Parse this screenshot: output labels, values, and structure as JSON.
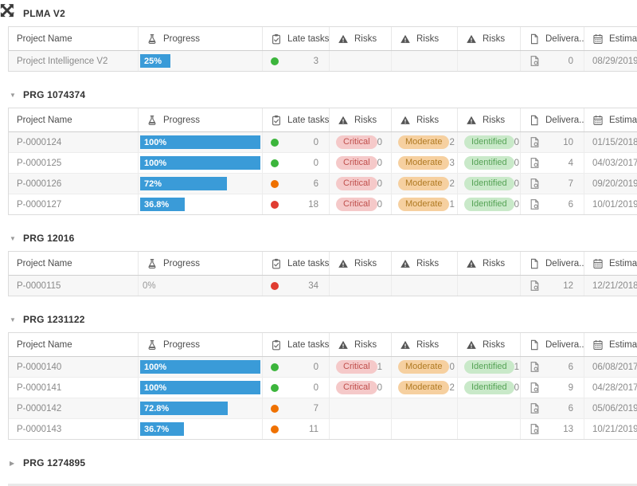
{
  "colors": {
    "progress_bar": "#3a9bd8",
    "status_green": "#3cb53c",
    "status_orange": "#ef7100",
    "status_red": "#e03c31",
    "pill_critical_bg": "#f5c9c9",
    "pill_critical_fg": "#c0504d",
    "pill_moderate_bg": "#f6d0a0",
    "pill_moderate_fg": "#b07a22",
    "pill_identified_bg": "#c9e9c9",
    "pill_identified_fg": "#56a356"
  },
  "icons": {
    "triangle_expanded": "▼",
    "triangle_collapsed": "▶"
  },
  "columns": [
    {
      "label": "Project Name",
      "icon": null
    },
    {
      "label": "Progress",
      "icon": "flask-icon"
    },
    {
      "label": "Late tasks",
      "icon": "clipboard-check-icon"
    },
    {
      "label": "Risks",
      "icon": "warning-icon"
    },
    {
      "label": "Risks",
      "icon": "warning-icon"
    },
    {
      "label": "Risks",
      "icon": "warning-icon"
    },
    {
      "label": "Delivera...",
      "icon": "document-icon"
    },
    {
      "label": "Estimated...",
      "icon": "calendar-icon"
    }
  ],
  "groups": [
    {
      "title": "PLMA V2",
      "expanded": true,
      "rows": [
        {
          "name": "Project Intelligence V2",
          "progress_label": "25%",
          "progress_value": 25,
          "late_status": "green",
          "late_count": 3,
          "risks": [
            null,
            null,
            null
          ],
          "deliverables": 0,
          "estimated": "08/29/2019"
        }
      ]
    },
    {
      "title": "PRG 1074374",
      "expanded": true,
      "rows": [
        {
          "name": "P-0000124",
          "progress_label": "100%",
          "progress_value": 100,
          "late_status": "green",
          "late_count": 0,
          "risks": [
            {
              "label": "Critical",
              "type": "critical",
              "count": 0
            },
            {
              "label": "Moderate",
              "type": "moderate",
              "count": 2
            },
            {
              "label": "Identified",
              "type": "identified",
              "count": 0
            }
          ],
          "deliverables": 10,
          "estimated": "01/15/2018"
        },
        {
          "name": "P-0000125",
          "progress_label": "100%",
          "progress_value": 100,
          "late_status": "green",
          "late_count": 0,
          "risks": [
            {
              "label": "Critical",
              "type": "critical",
              "count": 0
            },
            {
              "label": "Moderate",
              "type": "moderate",
              "count": 3
            },
            {
              "label": "Identified",
              "type": "identified",
              "count": 0
            }
          ],
          "deliverables": 4,
          "estimated": "04/03/2017"
        },
        {
          "name": "P-0000126",
          "progress_label": "72%",
          "progress_value": 72,
          "late_status": "orange",
          "late_count": 6,
          "risks": [
            {
              "label": "Critical",
              "type": "critical",
              "count": 0
            },
            {
              "label": "Moderate",
              "type": "moderate",
              "count": 2
            },
            {
              "label": "Identified",
              "type": "identified",
              "count": 0
            }
          ],
          "deliverables": 7,
          "estimated": "09/20/2019"
        },
        {
          "name": "P-0000127",
          "progress_label": "36.8%",
          "progress_value": 36.8,
          "late_status": "red",
          "late_count": 18,
          "risks": [
            {
              "label": "Critical",
              "type": "critical",
              "count": 0
            },
            {
              "label": "Moderate",
              "type": "moderate",
              "count": 1
            },
            {
              "label": "Identified",
              "type": "identified",
              "count": 0
            }
          ],
          "deliverables": 6,
          "estimated": "10/01/2019"
        }
      ]
    },
    {
      "title": "PRG 12016",
      "expanded": true,
      "rows": [
        {
          "name": "P-0000115",
          "progress_label": "0%",
          "progress_value": 0,
          "late_status": "red",
          "late_count": 34,
          "risks": [
            null,
            null,
            null
          ],
          "deliverables": 12,
          "estimated": "12/21/2018"
        }
      ]
    },
    {
      "title": "PRG 1231122",
      "expanded": true,
      "rows": [
        {
          "name": "P-0000140",
          "progress_label": "100%",
          "progress_value": 100,
          "late_status": "green",
          "late_count": 0,
          "risks": [
            {
              "label": "Critical",
              "type": "critical",
              "count": 1
            },
            {
              "label": "Moderate",
              "type": "moderate",
              "count": 0
            },
            {
              "label": "Identified",
              "type": "identified",
              "count": 1
            }
          ],
          "deliverables": 6,
          "estimated": "06/08/2017"
        },
        {
          "name": "P-0000141",
          "progress_label": "100%",
          "progress_value": 100,
          "late_status": "green",
          "late_count": 0,
          "risks": [
            {
              "label": "Critical",
              "type": "critical",
              "count": 0
            },
            {
              "label": "Moderate",
              "type": "moderate",
              "count": 2
            },
            {
              "label": "Identified",
              "type": "identified",
              "count": 0
            }
          ],
          "deliverables": 9,
          "estimated": "04/28/2017"
        },
        {
          "name": "P-0000142",
          "progress_label": "72.8%",
          "progress_value": 72.8,
          "late_status": "orange",
          "late_count": 7,
          "risks": [
            null,
            null,
            null
          ],
          "deliverables": 6,
          "estimated": "05/06/2019"
        },
        {
          "name": "P-0000143",
          "progress_label": "36.7%",
          "progress_value": 36.7,
          "late_status": "orange",
          "late_count": 11,
          "risks": [
            null,
            null,
            null
          ],
          "deliverables": 13,
          "estimated": "10/21/2019"
        }
      ]
    },
    {
      "title": "PRG 1274895",
      "expanded": false,
      "rows": []
    }
  ]
}
